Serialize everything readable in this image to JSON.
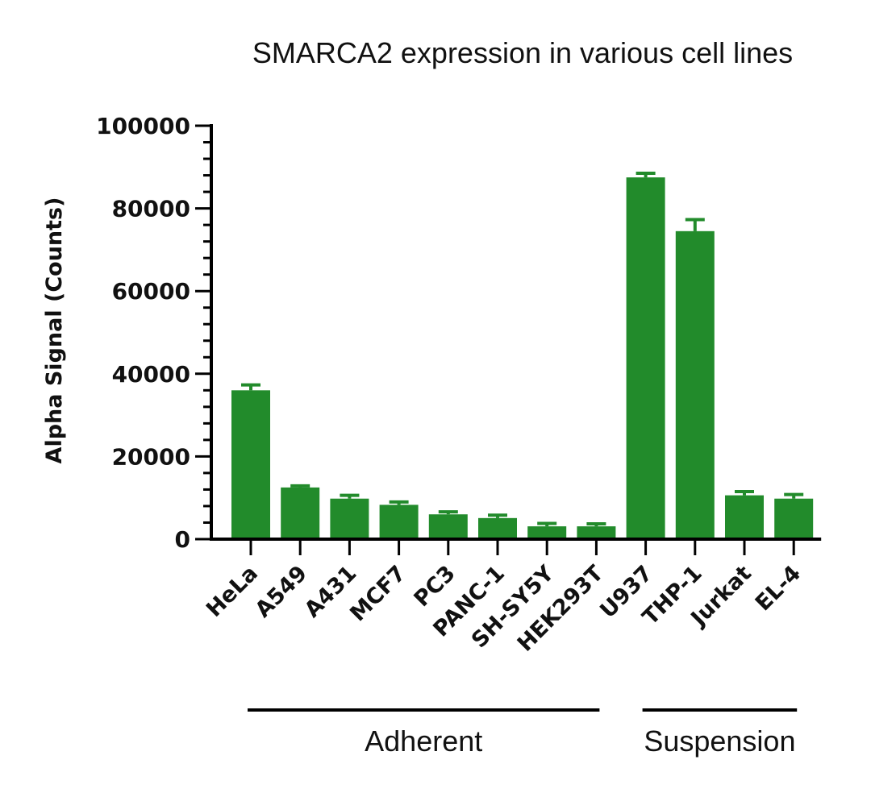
{
  "chart_data": {
    "type": "bar",
    "title": "SMARCA2 expression in various cell lines",
    "xlabel": "",
    "ylabel": "Alpha Signal (Counts)",
    "ylim": [
      0,
      100000
    ],
    "yticks": [
      "0",
      "20000",
      "40000",
      "60000",
      "80000",
      "100000"
    ],
    "categories": [
      "HeLa",
      "A549",
      "A431",
      "MCF7",
      "PC3",
      "PANC-1",
      "SH-SY5Y",
      "HEK293T",
      "U937",
      "THP-1",
      "Jurkat",
      "EL-4"
    ],
    "values": [
      36000,
      12500,
      9800,
      8300,
      6000,
      5100,
      3100,
      3100,
      87500,
      74500,
      10600,
      9800
    ],
    "errors": [
      1300,
      400,
      800,
      700,
      600,
      700,
      700,
      600,
      1000,
      2800,
      900,
      1000
    ],
    "groups": [
      {
        "label": "Adherent",
        "start": 0,
        "end": 7
      },
      {
        "label": "Suspension",
        "start": 8,
        "end": 11
      }
    ],
    "bar_color": "#228b2b",
    "grid": false,
    "legend": "none"
  }
}
